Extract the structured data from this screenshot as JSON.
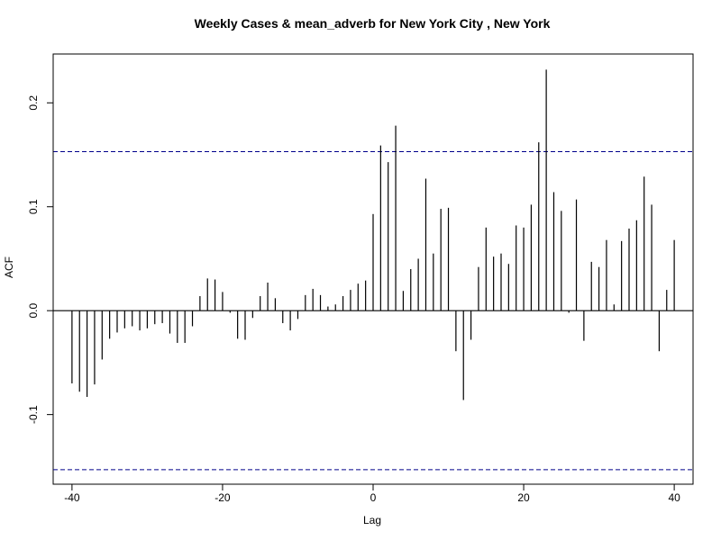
{
  "chart_data": {
    "type": "bar",
    "title": "Weekly Cases & mean_adverb for New York City , New York",
    "xlabel": "Lag",
    "ylabel": "ACF",
    "xlim": [
      -42.5,
      42.5
    ],
    "ylim": [
      -0.167,
      0.247
    ],
    "x_ticks": [
      -40,
      -20,
      0,
      20,
      40
    ],
    "x_tick_labels": [
      "-40",
      "-20",
      "0",
      "20",
      "40"
    ],
    "y_ticks": [
      -0.1,
      0.0,
      0.1,
      0.2
    ],
    "y_tick_labels": [
      "-0.1",
      "0.0",
      "0.1",
      "0.2"
    ],
    "confidence_bound": 0.153,
    "x": [
      -40,
      -39,
      -38,
      -37,
      -36,
      -35,
      -34,
      -33,
      -32,
      -31,
      -30,
      -29,
      -28,
      -27,
      -26,
      -25,
      -24,
      -23,
      -22,
      -21,
      -20,
      -19,
      -18,
      -17,
      -16,
      -15,
      -14,
      -13,
      -12,
      -11,
      -10,
      -9,
      -8,
      -7,
      -6,
      -5,
      -4,
      -3,
      -2,
      -1,
      0,
      1,
      2,
      3,
      4,
      5,
      6,
      7,
      8,
      9,
      10,
      11,
      12,
      13,
      14,
      15,
      16,
      17,
      18,
      19,
      20,
      21,
      22,
      23,
      24,
      25,
      26,
      27,
      28,
      29,
      30,
      31,
      32,
      33,
      34,
      35,
      36,
      37,
      38,
      39,
      40
    ],
    "values": [
      -0.07,
      -0.078,
      -0.083,
      -0.071,
      -0.047,
      -0.027,
      -0.021,
      -0.017,
      -0.015,
      -0.019,
      -0.017,
      -0.013,
      -0.012,
      -0.022,
      -0.031,
      -0.031,
      -0.015,
      0.014,
      0.031,
      0.03,
      0.018,
      -0.002,
      -0.027,
      -0.028,
      -0.007,
      0.014,
      0.027,
      0.012,
      -0.012,
      -0.019,
      -0.008,
      0.015,
      0.021,
      0.015,
      0.004,
      0.006,
      0.014,
      0.02,
      0.026,
      0.029,
      0.093,
      0.159,
      0.143,
      0.178,
      0.019,
      0.04,
      0.05,
      0.127,
      0.055,
      0.098,
      0.099,
      -0.039,
      -0.086,
      -0.028,
      0.042,
      0.08,
      0.052,
      0.055,
      0.045,
      0.082,
      0.08,
      0.102,
      0.162,
      0.232,
      0.114,
      0.096,
      -0.002,
      0.107,
      -0.029,
      0.047,
      0.042,
      0.068,
      0.006,
      0.067,
      0.079,
      0.087,
      0.129,
      0.102,
      -0.039,
      0.02,
      0.068
    ],
    "colors": {
      "bars": "#000000",
      "ci_line": "#00008b",
      "zero_line": "#000000",
      "box": "#000000"
    },
    "grid": false,
    "legend": "none"
  }
}
